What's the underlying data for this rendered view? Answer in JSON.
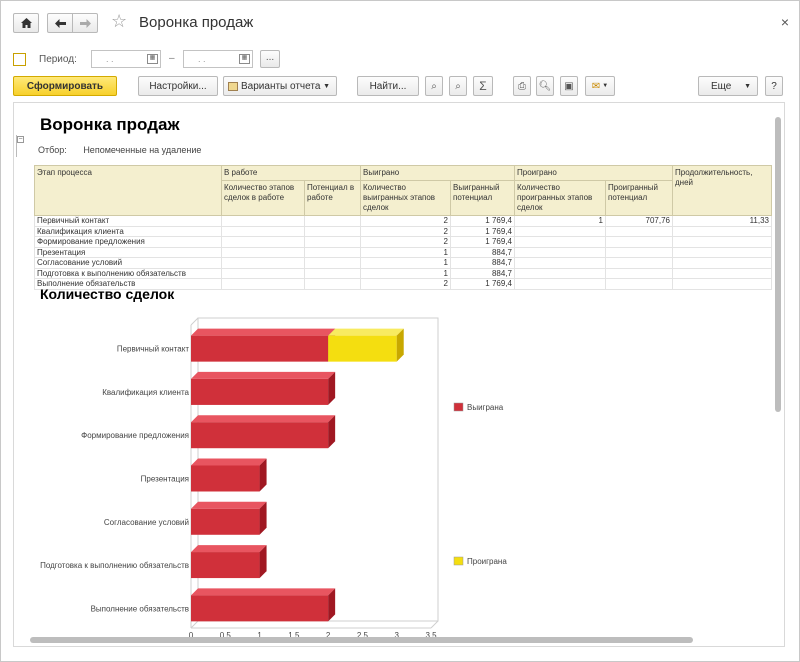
{
  "window": {
    "title": "Воронка продаж",
    "close_glyph": "×",
    "icons": {
      "home": "home-icon",
      "back": "arrow-left-icon",
      "forward": "arrow-right-icon",
      "favorite": "star-icon"
    }
  },
  "period": {
    "label": "Период:",
    "from_placeholder": ". .",
    "to_placeholder": ". .",
    "separator": "–",
    "more_label": "..."
  },
  "toolbar": {
    "generate": "Сформировать",
    "settings": "Настройки...",
    "variants": "Варианты отчета",
    "find": "Найти...",
    "more": "Еще",
    "help": "?"
  },
  "report": {
    "title": "Воронка продаж",
    "filter_label": "Отбор:",
    "filter_value": "Непомеченные на удаление",
    "headers": {
      "stage": "Этап процесса",
      "in_work": "В работе",
      "won": "Выиграно",
      "lost": "Проиграно",
      "duration": "Продолжительность, дней",
      "in_work_count": "Количество этапов сделок в работе",
      "in_work_potential": "Потенциал в работе",
      "won_count": "Количество выигранных этапов сделок",
      "won_potential": "Выигранный потенциал",
      "lost_count": "Количество проигранных этапов сделок",
      "lost_potential": "Проигранный потенциал"
    },
    "rows": [
      {
        "stage": "Первичный контакт",
        "won_count": "2",
        "won_potential": "1 769,4",
        "lost_count": "1",
        "lost_potential": "707,76",
        "duration": "11,33"
      },
      {
        "stage": "Квалификация клиента",
        "won_count": "2",
        "won_potential": "1 769,4",
        "lost_count": "",
        "lost_potential": "",
        "duration": ""
      },
      {
        "stage": "Формирование предложения",
        "won_count": "2",
        "won_potential": "1 769,4",
        "lost_count": "",
        "lost_potential": "",
        "duration": ""
      },
      {
        "stage": "Презентация",
        "won_count": "1",
        "won_potential": "884,7",
        "lost_count": "",
        "lost_potential": "",
        "duration": ""
      },
      {
        "stage": "Согласование условий",
        "won_count": "1",
        "won_potential": "884,7",
        "lost_count": "",
        "lost_potential": "",
        "duration": ""
      },
      {
        "stage": "Подготовка к выполнению обязательств",
        "won_count": "1",
        "won_potential": "884,7",
        "lost_count": "",
        "lost_potential": "",
        "duration": ""
      },
      {
        "stage": "Выполнение обязательств",
        "won_count": "2",
        "won_potential": "1 769,4",
        "lost_count": "",
        "lost_potential": "",
        "duration": ""
      }
    ]
  },
  "chart_data": {
    "type": "bar",
    "orientation": "horizontal",
    "stacked": true,
    "title": "Количество сделок",
    "categories": [
      "Первичный контакт",
      "Квалификация клиента",
      "Формирование предложения",
      "Презентация",
      "Согласование условий",
      "Подготовка к выполнению обязательств",
      "Выполнение обязательств"
    ],
    "series": [
      {
        "name": "Выиграна",
        "color": "#d0303a",
        "values": [
          2,
          2,
          2,
          1,
          1,
          1,
          2
        ]
      },
      {
        "name": "Проиграна",
        "color": "#f4de10",
        "values": [
          1,
          0,
          0,
          0,
          0,
          0,
          0
        ]
      }
    ],
    "xticks": [
      "0",
      "0.5",
      "1",
      "1.5",
      "2",
      "2.5",
      "3",
      "3.5"
    ],
    "xlim": [
      0,
      3.5
    ],
    "legend": "right"
  }
}
